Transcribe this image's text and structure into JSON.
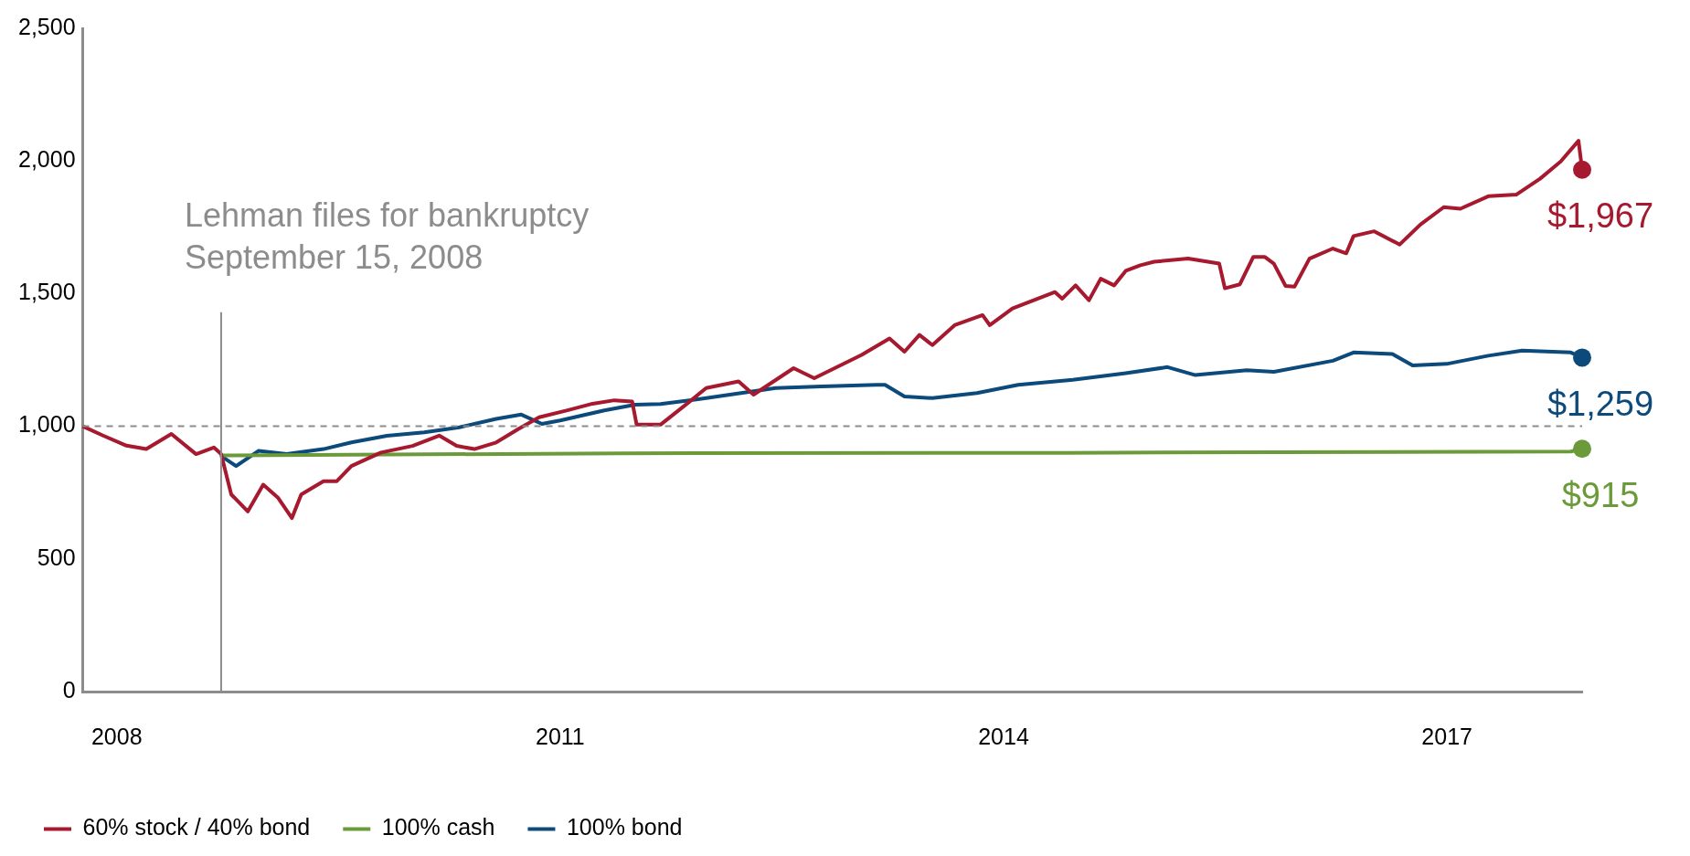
{
  "chart_data": {
    "type": "line",
    "xlim": [
      "2007-10-09",
      "2017-12-01"
    ],
    "xticks": [
      "2008",
      "2011",
      "2014",
      "2017"
    ],
    "ylim": [
      0,
      2500
    ],
    "yticks": [
      0,
      500,
      {
        "value": 1000,
        "label": "1,000"
      },
      {
        "value": 1500,
        "label": "1,500"
      },
      {
        "value": 2000,
        "label": "2,000"
      },
      {
        "value": 2500,
        "label": "2,500"
      }
    ],
    "grid": false,
    "legend": "bottom left",
    "line_style": "solid",
    "ref_lines": [
      {
        "axis": "x",
        "value": "2008-09-15",
        "label": "Lehman files for bankruptcy\nSeptember 15, 2008",
        "color": "#8c8c8c",
        "line_style": "solid"
      },
      {
        "axis": "y",
        "value": 1000,
        "label": null,
        "color": "#8c8c8c",
        "line_style": "dashed"
      }
    ],
    "series": [
      {
        "name": "60% stock / 40% bond",
        "color": "#a6192e",
        "x": [
          "2007-10-09",
          "2007-11-28",
          "2008-01-25",
          "2008-03-14",
          "2008-05-15",
          "2008-07-15",
          "2008-08-28",
          "2008-09-15",
          "2008-10-10",
          "2008-11-20",
          "2008-12-28",
          "2009-02-03",
          "2009-03-09",
          "2009-04-01",
          "2009-05-26",
          "2009-06-28",
          "2009-08-03",
          "2009-10-15",
          "2010-01-01",
          "2010-03-08",
          "2010-04-20",
          "2010-06-03",
          "2010-07-27",
          "2010-09-20",
          "2010-11-10",
          "2011-01-19",
          "2011-03-22",
          "2011-05-15",
          "2011-06-28",
          "2011-07-09",
          "2011-09-06",
          "2011-11-07",
          "2011-12-28",
          "2012-03-17",
          "2012-04-23",
          "2012-07-31",
          "2012-09-20",
          "2013-01-15",
          "2013-03-25",
          "2013-05-01",
          "2013-06-07",
          "2013-07-09",
          "2013-09-02",
          "2013-11-10",
          "2013-11-28",
          "2014-01-23",
          "2014-05-08",
          "2014-05-26",
          "2014-06-28",
          "2014-07-31",
          "2014-08-29",
          "2014-10-01",
          "2014-10-30",
          "2014-12-05",
          "2015-01-08",
          "2015-04-02",
          "2015-06-18",
          "2015-07-02",
          "2015-08-08",
          "2015-09-10",
          "2015-10-09",
          "2015-10-31",
          "2015-11-29",
          "2015-12-21",
          "2016-01-27",
          "2016-03-25",
          "2016-04-27",
          "2016-05-15",
          "2016-07-05",
          "2016-09-06",
          "2016-10-27",
          "2016-12-24",
          "2017-02-03",
          "2017-04-13",
          "2017-06-21",
          "2017-08-19",
          "2017-10-09",
          "2017-11-22",
          "2017-12-01"
        ],
        "values": [
          1000,
          965,
          927,
          914,
          971,
          895,
          920,
          895,
          743,
          679,
          780,
          730,
          654,
          743,
          793,
          793,
          850,
          901,
          926,
          965,
          926,
          914,
          939,
          990,
          1034,
          1060,
          1085,
          1098,
          1093,
          1006,
          1006,
          1081,
          1144,
          1169,
          1119,
          1219,
          1181,
          1269,
          1331,
          1281,
          1344,
          1306,
          1381,
          1419,
          1381,
          1444,
          1506,
          1481,
          1531,
          1475,
          1556,
          1531,
          1586,
          1607,
          1620,
          1632,
          1613,
          1520,
          1535,
          1638,
          1638,
          1613,
          1529,
          1526,
          1632,
          1670,
          1652,
          1717,
          1735,
          1685,
          1760,
          1826,
          1820,
          1867,
          1873,
          1933,
          1998,
          2076,
          1967
        ]
      },
      {
        "name": "100% cash",
        "color": "#6a9a3a",
        "x": [
          "2008-09-15",
          "2011-06-01",
          "2014-06-01",
          "2017-11-03",
          "2017-12-01"
        ],
        "values": [
          890,
          898,
          900,
          905,
          915
        ]
      },
      {
        "name": "100% bond",
        "color": "#0b4a7a",
        "x": [
          "2008-09-15",
          "2008-10-22",
          "2008-12-16",
          "2009-02-24",
          "2009-05-26",
          "2009-08-03",
          "2009-10-30",
          "2010-01-30",
          "2010-04-27",
          "2010-07-27",
          "2010-09-27",
          "2010-11-17",
          "2011-01-01",
          "2011-04-20",
          "2011-07-05",
          "2011-09-06",
          "2011-12-28",
          "2012-06-17",
          "2012-10-08",
          "2013-02-20",
          "2013-03-14",
          "2013-05-01",
          "2013-07-09",
          "2013-10-27",
          "2014-02-06",
          "2014-06-21",
          "2014-10-30",
          "2015-02-10",
          "2015-04-20",
          "2015-08-25",
          "2015-10-31",
          "2016-03-25",
          "2016-05-15",
          "2016-08-19",
          "2016-10-08",
          "2016-12-31",
          "2017-04-13",
          "2017-07-06",
          "2017-11-03",
          "2017-12-01"
        ],
        "values": [
          888,
          850,
          907,
          895,
          914,
          939,
          964,
          977,
          996,
          1028,
          1044,
          1009,
          1022,
          1060,
          1081,
          1084,
          1106,
          1144,
          1150,
          1156,
          1156,
          1112,
          1106,
          1125,
          1156,
          1175,
          1200,
          1223,
          1193,
          1211,
          1205,
          1247,
          1278,
          1272,
          1229,
          1235,
          1266,
          1285,
          1278,
          1259
        ]
      },
      {
        "type": "scatter",
        "color": "#a6192e",
        "marker": "circle",
        "x": [
          "2017-12-01"
        ],
        "values": [
          1967
        ],
        "value_labels": [
          "$1,967"
        ]
      },
      {
        "type": "scatter",
        "color": "#6a9a3a",
        "marker": "circle",
        "x": [
          "2017-12-01"
        ],
        "values": [
          915
        ],
        "value_labels": [
          "$915"
        ]
      },
      {
        "type": "scatter",
        "color": "#0b4a7a",
        "marker": "circle",
        "x": [
          "2017-12-01"
        ],
        "values": [
          1259
        ],
        "value_labels": [
          "$1,259"
        ]
      }
    ]
  }
}
